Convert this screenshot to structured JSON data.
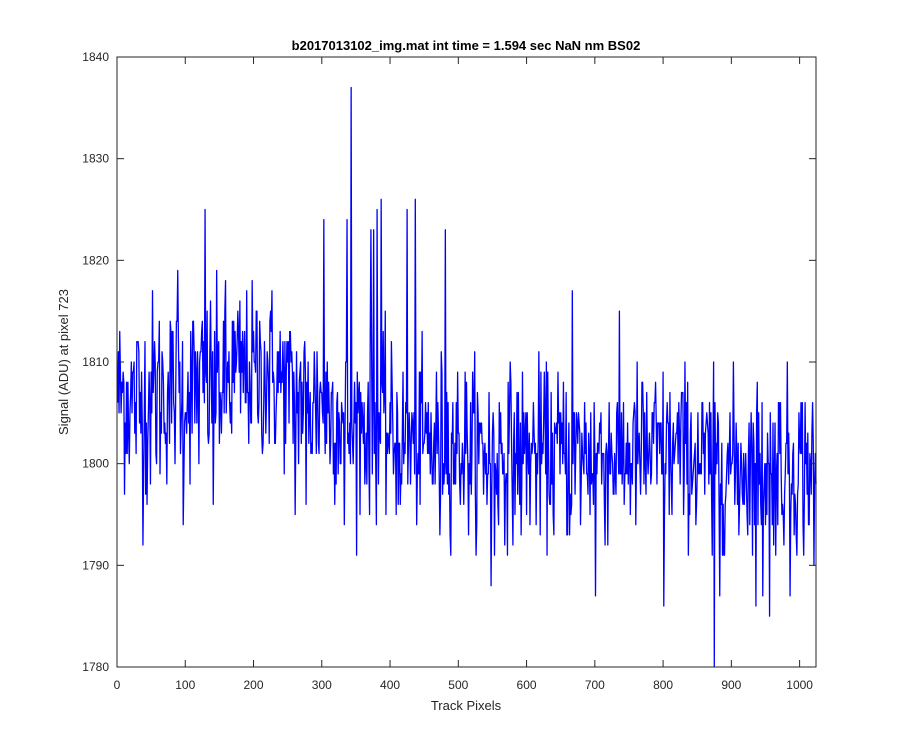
{
  "chart_data": {
    "type": "line",
    "title": "b2017013102_img.mat int time = 1.594 sec  NaN nm BS02",
    "xlabel": "Track Pixels",
    "ylabel": "Signal (ADU) at pixel 723",
    "xlim": [
      0,
      1024
    ],
    "ylim": [
      1780,
      1840
    ],
    "xticks": [
      0,
      100,
      200,
      300,
      400,
      500,
      600,
      700,
      800,
      900,
      1000
    ],
    "yticks": [
      1780,
      1790,
      1800,
      1810,
      1820,
      1830,
      1840
    ],
    "grid": false,
    "legend": "none",
    "series_color": "#0000ff",
    "segment_size": 20,
    "baseline_start": [
      1807,
      1806,
      1806,
      1807,
      1807,
      1808,
      1807,
      1808,
      1808,
      1809,
      1809,
      1809,
      1808,
      1807,
      1806,
      1806,
      1805,
      1804,
      1804,
      1804,
      1803,
      1802,
      1802,
      1802,
      1802,
      1802,
      1801,
      1801,
      1801,
      1801,
      1801,
      1801,
      1801,
      1801,
      1801,
      1801,
      1801,
      1801,
      1801,
      1801,
      1801,
      1801,
      1801,
      1800,
      1800,
      1800,
      1800,
      1800,
      1800,
      1800,
      1800,
      1800
    ],
    "spread": [
      4.6,
      4.6,
      5.4,
      4.8,
      4.4,
      4.4,
      4.6,
      4.4,
      4.8,
      4.2,
      4.2,
      4.6,
      4.0,
      4.0,
      4.2,
      4.4,
      4.0,
      4.0,
      4.2,
      4.2,
      4.2,
      4.0,
      4.0,
      4.2,
      4.2,
      4.0,
      4.4,
      4.2,
      4.2,
      4.2,
      4.2,
      4.2,
      4.2,
      4.2,
      4.2,
      4.2,
      4.2,
      4.2,
      4.2,
      4.2,
      4.2,
      4.2,
      4.2,
      4.2,
      4.2,
      4.2,
      4.2,
      4.2,
      4.2,
      4.2,
      4.2,
      4.2
    ],
    "peaks": [
      {
        "x": 128,
        "y": 1825
      },
      {
        "x": 88,
        "y": 1819
      },
      {
        "x": 96,
        "y": 1794
      },
      {
        "x": 140,
        "y": 1796
      },
      {
        "x": 260,
        "y": 1795
      },
      {
        "x": 276,
        "y": 1796
      },
      {
        "x": 302,
        "y": 1824
      },
      {
        "x": 332,
        "y": 1794
      },
      {
        "x": 336,
        "y": 1824
      },
      {
        "x": 342,
        "y": 1837
      },
      {
        "x": 345,
        "y": 1800
      },
      {
        "x": 371,
        "y": 1823
      },
      {
        "x": 375,
        "y": 1823
      },
      {
        "x": 380,
        "y": 1825
      },
      {
        "x": 386,
        "y": 1826
      },
      {
        "x": 424,
        "y": 1825
      },
      {
        "x": 436,
        "y": 1826
      },
      {
        "x": 472,
        "y": 1793
      },
      {
        "x": 480,
        "y": 1823
      },
      {
        "x": 547,
        "y": 1788
      },
      {
        "x": 552,
        "y": 1791
      },
      {
        "x": 662,
        "y": 1793
      },
      {
        "x": 666,
        "y": 1817
      },
      {
        "x": 700,
        "y": 1787
      },
      {
        "x": 800,
        "y": 1786
      },
      {
        "x": 871,
        "y": 1791
      },
      {
        "x": 874,
        "y": 1780
      },
      {
        "x": 878,
        "y": 1800
      },
      {
        "x": 882,
        "y": 1787
      },
      {
        "x": 935,
        "y": 1786
      },
      {
        "x": 945,
        "y": 1787
      },
      {
        "x": 955,
        "y": 1785
      },
      {
        "x": 985,
        "y": 1787
      },
      {
        "x": 1020,
        "y": 1790
      }
    ]
  }
}
